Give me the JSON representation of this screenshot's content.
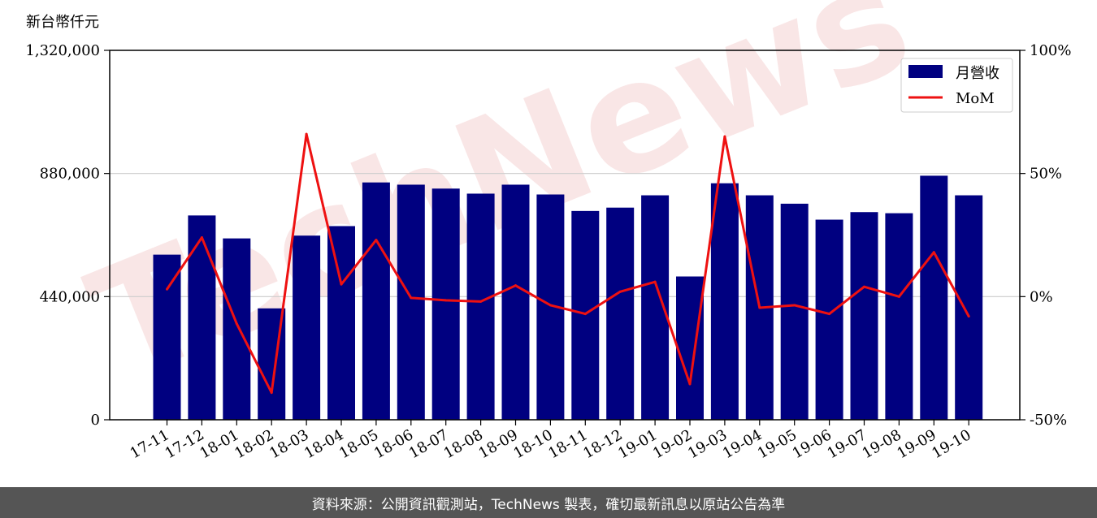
{
  "watermark": "TechNews",
  "footer_text": "資料來源：公開資訊觀測站，TechNews 製表，確切最新訊息以原站公告為準",
  "colors": {
    "bar": "#000080",
    "line": "#ee1111",
    "footer_bg": "#555555"
  },
  "chart_data": {
    "type": "bar",
    "unit_label": "新台幣仟元",
    "categories": [
      "17-11",
      "17-12",
      "18-01",
      "18-02",
      "18-03",
      "18-04",
      "18-05",
      "18-06",
      "18-07",
      "18-08",
      "18-09",
      "18-10",
      "18-11",
      "18-12",
      "19-01",
      "19-02",
      "19-03",
      "19-04",
      "19-05",
      "19-06",
      "19-07",
      "19-08",
      "19-09",
      "19-10"
    ],
    "series": [
      {
        "name": "月營收",
        "type": "bar",
        "axis": "left",
        "values": [
          590000,
          730000,
          648000,
          398000,
          658000,
          692000,
          848000,
          840000,
          826000,
          808000,
          840000,
          805000,
          746000,
          758000,
          802000,
          512000,
          845000,
          802000,
          772000,
          715000,
          742000,
          738000,
          872000,
          802000
        ]
      },
      {
        "name": "MoM",
        "type": "line",
        "axis": "right",
        "values": [
          3,
          24,
          -11,
          -39,
          66,
          5,
          23,
          -0.5,
          -1.5,
          -2,
          4.5,
          -3.5,
          -7,
          2,
          6,
          -35.5,
          65,
          -4.5,
          -3.5,
          -7,
          4,
          0,
          18,
          -8
        ]
      }
    ],
    "left_axis": {
      "ylim": [
        0,
        1320000
      ],
      "ticks": [
        0,
        440000,
        880000,
        1320000
      ],
      "tick_labels": [
        "0",
        "440,000",
        "880,000",
        "1,320,000"
      ]
    },
    "right_axis": {
      "ylim": [
        -50,
        100
      ],
      "ticks": [
        -50,
        0,
        50,
        100
      ],
      "tick_labels": [
        "-50%",
        "0%",
        "50%",
        "100%"
      ]
    },
    "grid": "horizontal",
    "legend_position": "top-right"
  }
}
